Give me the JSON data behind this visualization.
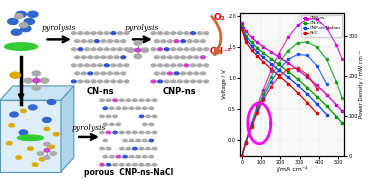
{
  "bg_color": "#ffffff",
  "plot": {
    "xlabel": "j/mA cm⁻²",
    "ylabel_left": "Voltage / V",
    "ylabel_right": "Power Density / mW cm⁻²",
    "xlim": [
      -10,
      530
    ],
    "ylim_left": [
      -0.25,
      2.05
    ],
    "ylim_right": [
      0,
      360
    ],
    "yticks_left": [
      0.0,
      0.5,
      1.0,
      1.5,
      2.0
    ],
    "yticks_right": [
      0,
      100,
      200,
      300
    ],
    "xticks": [
      0,
      100,
      200,
      300,
      400,
      500
    ],
    "curves": [
      {
        "label": "CNP-ns",
        "color": "#cc00cc",
        "j": [
          0,
          20,
          50,
          80,
          110,
          150,
          190,
          240,
          290,
          340,
          390,
          440,
          490,
          520
        ],
        "v": [
          1.88,
          1.75,
          1.65,
          1.57,
          1.5,
          1.42,
          1.34,
          1.24,
          1.13,
          1.01,
          0.88,
          0.73,
          0.57,
          0.47
        ],
        "p": [
          0,
          35,
          82,
          126,
          165,
          213,
          255,
          298,
          328,
          344,
          343,
          321,
          279,
          244
        ]
      },
      {
        "label": "CN-ns",
        "color": "#009900",
        "j": [
          0,
          20,
          50,
          80,
          110,
          150,
          190,
          240,
          290,
          340,
          390,
          440,
          490,
          520
        ],
        "v": [
          1.83,
          1.68,
          1.57,
          1.48,
          1.4,
          1.31,
          1.22,
          1.1,
          0.98,
          0.84,
          0.7,
          0.55,
          0.38,
          0.28
        ],
        "p": [
          0,
          34,
          78,
          118,
          154,
          197,
          232,
          264,
          284,
          286,
          273,
          242,
          186,
          145
        ]
      },
      {
        "label": "CNP-ns/Nafion",
        "color": "#0044ff",
        "j": [
          0,
          20,
          50,
          80,
          110,
          150,
          190,
          240,
          290,
          340,
          390,
          440
        ],
        "v": [
          1.8,
          1.63,
          1.51,
          1.41,
          1.33,
          1.23,
          1.13,
          1.01,
          0.88,
          0.74,
          0.58,
          0.41
        ],
        "p": [
          0,
          33,
          75,
          113,
          146,
          185,
          215,
          242,
          255,
          252,
          226,
          180
        ]
      },
      {
        "label": "Pt/C",
        "color": "#dd0000",
        "j": [
          0,
          20,
          50,
          80,
          110,
          150,
          190,
          240,
          290,
          340,
          390
        ],
        "v": [
          1.78,
          1.58,
          1.45,
          1.35,
          1.26,
          1.15,
          1.04,
          0.91,
          0.76,
          0.6,
          0.43
        ],
        "p": [
          0,
          32,
          72,
          108,
          139,
          173,
          198,
          218,
          220,
          204,
          168
        ]
      }
    ]
  }
}
